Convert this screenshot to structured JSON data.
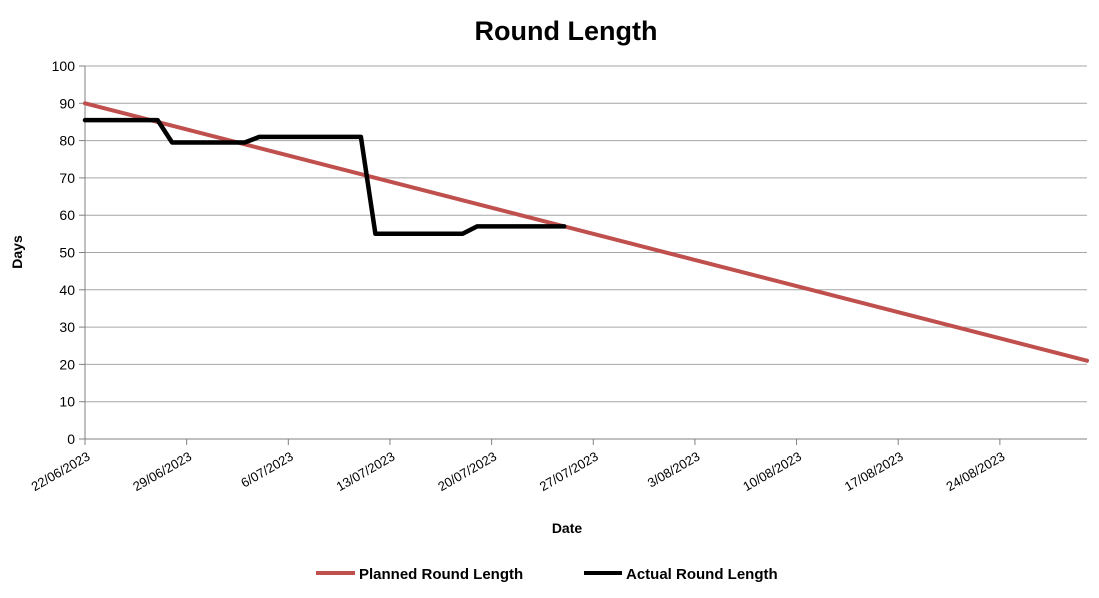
{
  "page": {
    "background": "#ffffff"
  },
  "chart_data": {
    "type": "line",
    "title": "Round Length",
    "xlabel": "Date",
    "ylabel": "Days",
    "ylim": [
      0,
      100
    ],
    "y_ticks": [
      0,
      10,
      20,
      30,
      40,
      50,
      60,
      70,
      80,
      90,
      100
    ],
    "x_tick_labels": [
      "22/06/2023",
      "29/06/2023",
      "6/07/2023",
      "13/07/2023",
      "20/07/2023",
      "27/07/2023",
      "3/08/2023",
      "10/08/2023",
      "17/08/2023",
      "24/08/2023"
    ],
    "grid": "horizontal",
    "gridline_color": "#a6a6a6",
    "axis_color": "#808080",
    "legend_position": "bottom",
    "series": [
      {
        "name": "Planned Round Length",
        "color": "#C0504D",
        "points": [
          {
            "date": "22/06/2023",
            "value": 90
          },
          {
            "date": "30/08/2023",
            "value": 21
          }
        ]
      },
      {
        "name": "Actual Round Length",
        "color": "#000000",
        "points": [
          {
            "date": "22/06/2023",
            "value": 85.5
          },
          {
            "date": "27/06/2023",
            "value": 85.5
          },
          {
            "date": "28/06/2023",
            "value": 79.5
          },
          {
            "date": "03/07/2023",
            "value": 79.5
          },
          {
            "date": "04/07/2023",
            "value": 81
          },
          {
            "date": "11/07/2023",
            "value": 81
          },
          {
            "date": "12/07/2023",
            "value": 55
          },
          {
            "date": "18/07/2023",
            "value": 55
          },
          {
            "date": "19/07/2023",
            "value": 57
          },
          {
            "date": "25/07/2023",
            "value": 57
          }
        ]
      }
    ]
  }
}
